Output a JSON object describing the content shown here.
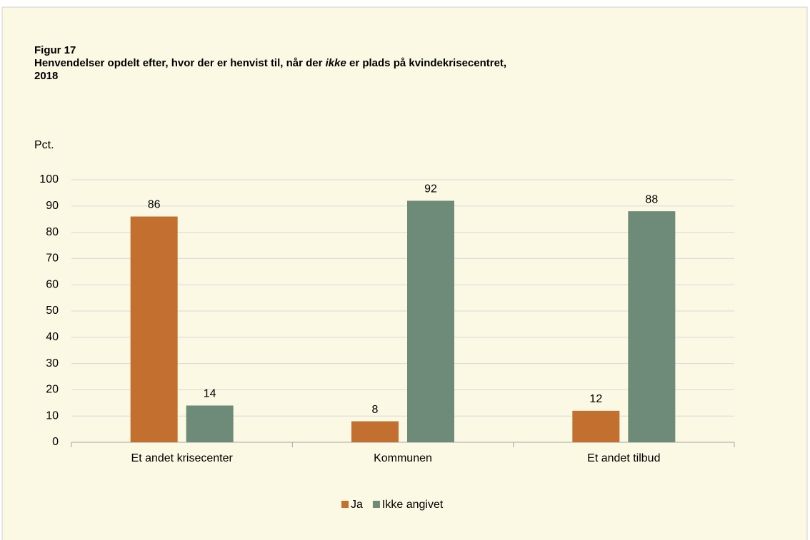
{
  "chart_data": {
    "type": "bar",
    "figure_label": "Figur 17",
    "title": [
      "Henvendelser opdelt efter, hvor der er henvist til, når der ",
      "ikke",
      " er plads på kvindekrisecentret, 2018"
    ],
    "y_label": "Pct.",
    "categories": [
      "Et andet krisecenter",
      "Kommunen",
      "Et andet tilbud"
    ],
    "series": [
      {
        "name": "Ja",
        "color": "#c36f2f",
        "values": [
          86,
          8,
          12
        ]
      },
      {
        "name": "Ikke angivet",
        "color": "#6e8a78",
        "values": [
          14,
          92,
          88
        ]
      }
    ],
    "ylim": [
      0,
      100
    ],
    "yticks": [
      0,
      10,
      20,
      30,
      40,
      50,
      60,
      70,
      80,
      90,
      100
    ],
    "grid": true,
    "legend": "bottom"
  }
}
